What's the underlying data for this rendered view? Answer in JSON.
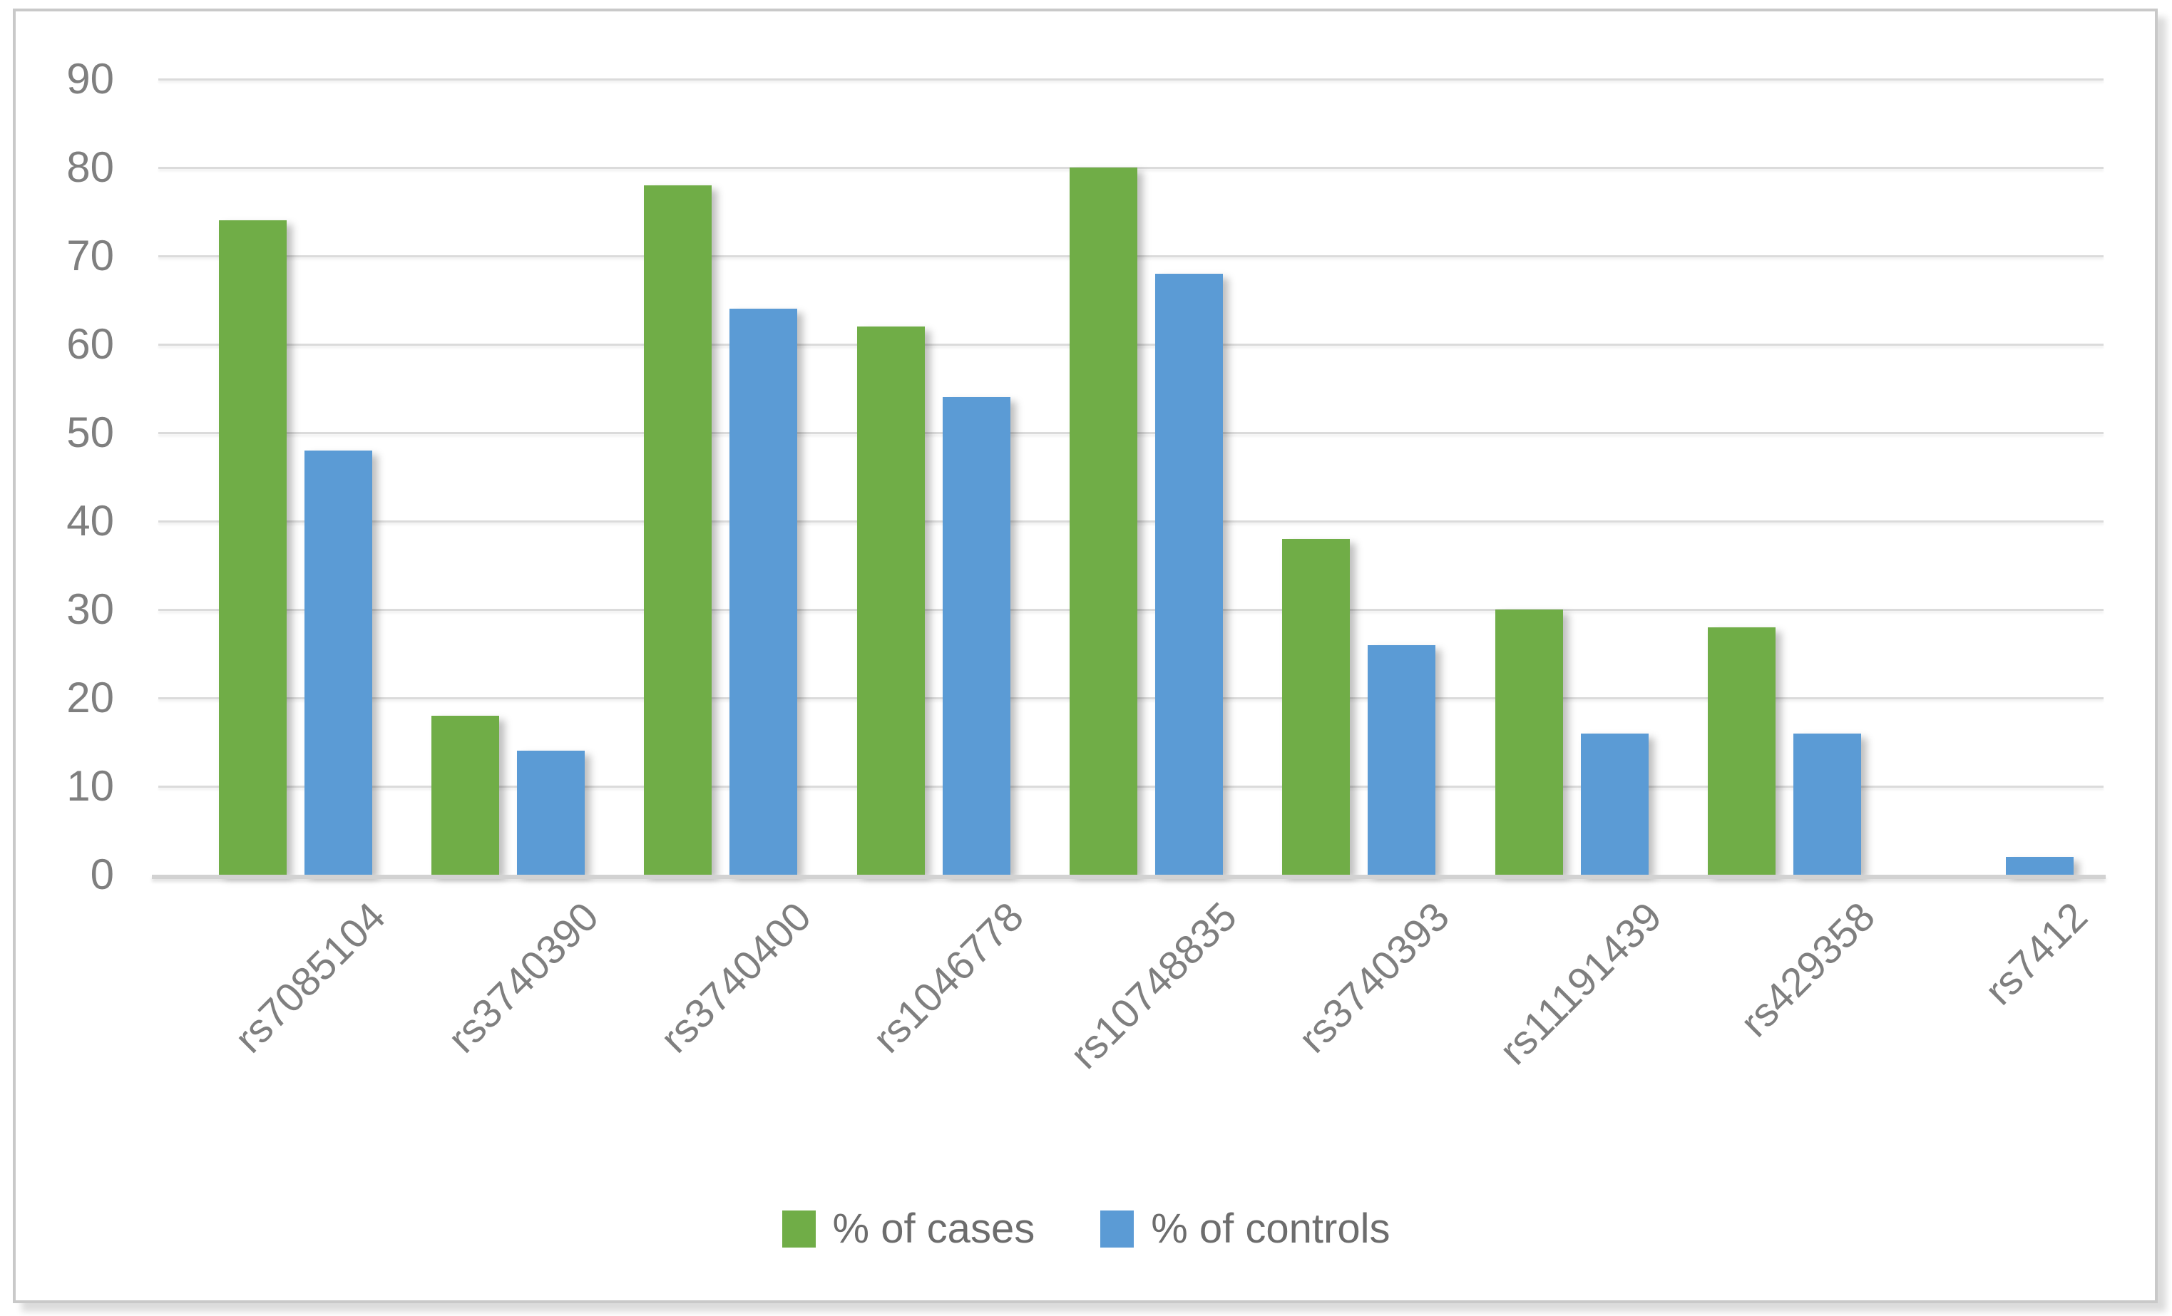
{
  "chart_data": {
    "type": "bar",
    "categories": [
      "rs7085104",
      "rs3740390",
      "rs3740400",
      "rs1046778",
      "rs10748835",
      "rs3740393",
      "rs11191439",
      "rs429358",
      "rs7412"
    ],
    "series": [
      {
        "name": "% of cases",
        "color": "#70AD47",
        "values": [
          74,
          18,
          78,
          62,
          80,
          38,
          30,
          28,
          0
        ]
      },
      {
        "name": "% of controls",
        "color": "#5B9BD5",
        "values": [
          48,
          14,
          64,
          54,
          68,
          26,
          16,
          16,
          2
        ]
      }
    ],
    "title": "",
    "xlabel": "",
    "ylabel": "",
    "ylim": [
      0,
      90
    ],
    "ytick_step": 10,
    "yticks": [
      "0",
      "10",
      "20",
      "30",
      "40",
      "50",
      "60",
      "70",
      "80",
      "90"
    ],
    "grid": true,
    "legend_position": "bottom",
    "x_tick_label_rotation_deg": 45
  },
  "colors": {
    "gridline": "#dbdbdb",
    "axis_line": "#d2d2d2",
    "y_tick_label": "#7f7f7f",
    "x_tick_label": "#7f7f7f",
    "legend_text": "#6d6d6d",
    "frame_border": "#c9c9c9",
    "background": "#ffffff"
  }
}
